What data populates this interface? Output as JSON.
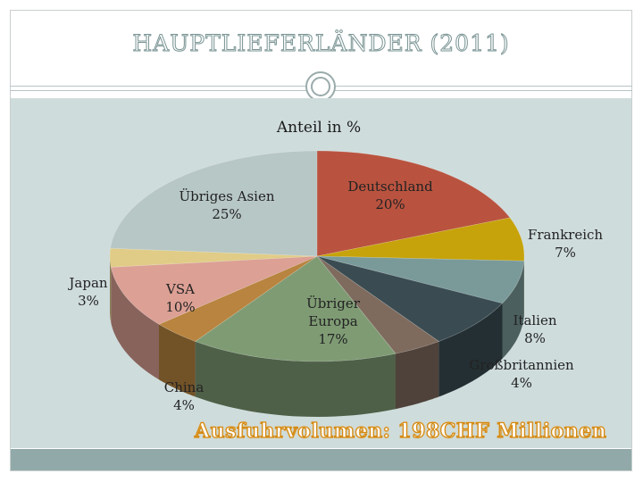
{
  "slide": {
    "title": "HAUPTLIEFERLÄNDER (2011)",
    "footer": "Ausfuhrvolumen: 198CHF Millionen"
  },
  "chart_data": {
    "type": "pie",
    "title": "Anteil in %",
    "slices": [
      {
        "label": "Deutschland",
        "value": 20,
        "value_label": "20%",
        "color": "#b9533f"
      },
      {
        "label": "Frankreich",
        "value": 7,
        "value_label": "7%",
        "color": "#c6a30a"
      },
      {
        "label": "",
        "value": 7,
        "value_label": "",
        "color": "#7a9a9a"
      },
      {
        "label": "Italien",
        "value": 8,
        "value_label": "8%",
        "color": "#3a4c52"
      },
      {
        "label": "Großbritannien",
        "value": 4,
        "value_label": "4%",
        "color": "#7e6b5e"
      },
      {
        "label": "Übriger Europa",
        "value": 17,
        "value_label": "17%",
        "color": "#7f9b74"
      },
      {
        "label": "China",
        "value": 4,
        "value_label": "4%",
        "color": "#b8843f"
      },
      {
        "label": "VSA",
        "value": 10,
        "value_label": "10%",
        "color": "#dca095"
      },
      {
        "label": "Japan",
        "value": 3,
        "value_label": "3%",
        "color": "#e0cc86"
      },
      {
        "label": "Übriges Asien",
        "value": 25,
        "value_label": "25%",
        "color": "#b7c7c5"
      }
    ],
    "style": "3d",
    "legend": "none",
    "grid": false
  },
  "colors": {
    "title_outline": "#7d9696",
    "panel_bg": "#cfdcdc",
    "bottom_bar": "#91aaa9",
    "footer_outline": "#d58a12"
  }
}
